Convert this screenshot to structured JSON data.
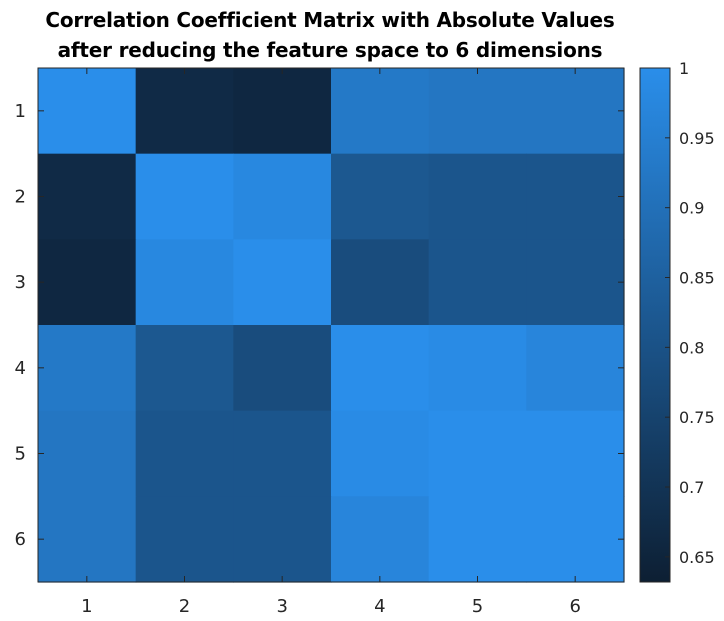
{
  "chart_data": {
    "type": "heatmap",
    "title_lines": [
      "Correlation Coefficient Matrix with Absolute Values",
      "after reducing the feature space to 6 dimensions"
    ],
    "x_ticks": [
      "1",
      "2",
      "3",
      "4",
      "5",
      "6"
    ],
    "y_ticks": [
      "1",
      "2",
      "3",
      "4",
      "5",
      "6"
    ],
    "matrix": [
      [
        1.0,
        0.67,
        0.66,
        0.93,
        0.92,
        0.92
      ],
      [
        0.67,
        1.0,
        0.98,
        0.82,
        0.81,
        0.81
      ],
      [
        0.66,
        0.98,
        1.0,
        0.78,
        0.81,
        0.81
      ],
      [
        0.93,
        0.82,
        0.78,
        1.0,
        0.99,
        0.97
      ],
      [
        0.92,
        0.81,
        0.81,
        0.99,
        1.0,
        1.0
      ],
      [
        0.92,
        0.81,
        0.81,
        0.97,
        1.0,
        1.0
      ]
    ],
    "colorbar": {
      "range": [
        0.632,
        1.0
      ],
      "ticks": [
        0.65,
        0.7,
        0.75,
        0.8,
        0.85,
        0.9,
        0.95,
        1.0
      ],
      "tick_labels": [
        "0.65",
        "0.7",
        "0.75",
        "0.8",
        "0.85",
        "0.9",
        "0.95",
        "1"
      ],
      "color_low": "#0d1f33",
      "color_high": "#2a8eea"
    },
    "grid": false,
    "legend": "colorbar-right"
  }
}
